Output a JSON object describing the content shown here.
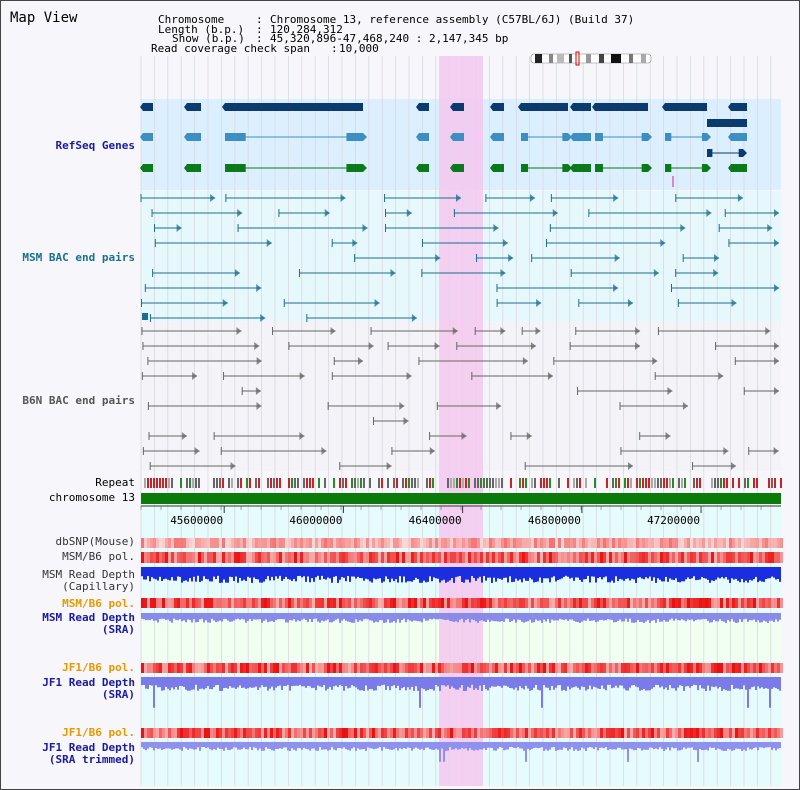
{
  "map_title": "Map View",
  "header": {
    "chromosome_label": "Chromosome",
    "chromosome_value": "Chromosome 13, reference assembly (C57BL/6J) (Build 37)",
    "length_label": "Length (b.p.)",
    "length_value": "120,284,312",
    "show_label": "Show (b.p.)",
    "show_value": "45,320,896-47,468,240 : 2,147,345 bp",
    "coverage_label": "Read coverage check span",
    "coverage_value": "10,000"
  },
  "tracks": {
    "refseq": "RefSeq Genes",
    "msm_bac": "MSM BAC end pairs",
    "b6n_bac": "B6N BAC end pairs",
    "repeat": "Repeat",
    "chromosome": "chromosome 13",
    "dbsnp": "dbSNP(Mouse)",
    "msm_b6_pol": "MSM/B6 pol.",
    "msm_depth_cap_1": "MSM Read Depth",
    "msm_depth_cap_2": "(Capillary)",
    "msm_b6_pol2": "MSM/B6 pol.",
    "msm_depth_sra_1": "MSM Read Depth",
    "msm_depth_sra_2": "(SRA)",
    "jf1_b6_pol": "JF1/B6 pol.",
    "jf1_depth_sra_1": "JF1 Read Depth",
    "jf1_depth_sra_2": "(SRA)",
    "jf1_b6_pol2": "JF1/B6 pol.",
    "jf1_depth_trim_1": "JF1 Read Depth",
    "jf1_depth_trim_2": "(SRA trimmed)"
  },
  "axis_ticks": [
    45600000,
    46000000,
    46400000,
    46800000,
    47200000
  ],
  "colors": {
    "refseq_dark": "#0a3a6e",
    "refseq_mid": "#3c8fc0",
    "refseq_green": "#0a7a1a",
    "bac_msm": "#1a6f8f",
    "bac_b6n": "#666666",
    "highlight": "#f5c8ee",
    "label_blue": "#1a1aa0",
    "label_orange": "#e69900",
    "label_teal": "#1a6f8f"
  }
}
